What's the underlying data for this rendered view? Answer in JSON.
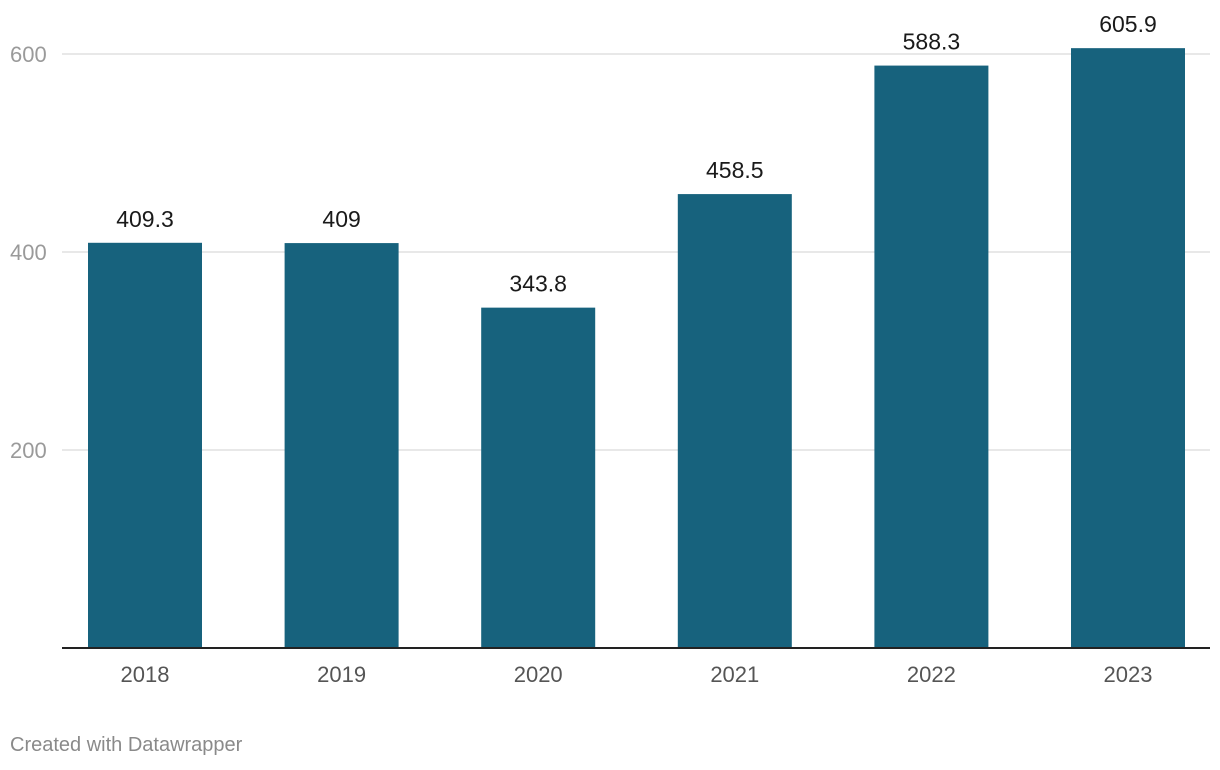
{
  "chart_data": {
    "type": "bar",
    "categories": [
      "2018",
      "2019",
      "2020",
      "2021",
      "2022",
      "2023"
    ],
    "values": [
      409.3,
      409,
      343.8,
      458.5,
      588.3,
      605.9
    ],
    "value_labels": [
      "409.3",
      "409",
      "343.8",
      "458.5",
      "588.3",
      "605.9"
    ],
    "y_ticks": [
      200,
      400,
      600
    ],
    "ylim": [
      0,
      600
    ],
    "grid": true,
    "bar_color": "#17627d",
    "title": "",
    "xlabel": "",
    "ylabel": ""
  },
  "footer": {
    "credit": "Created with Datawrapper"
  }
}
